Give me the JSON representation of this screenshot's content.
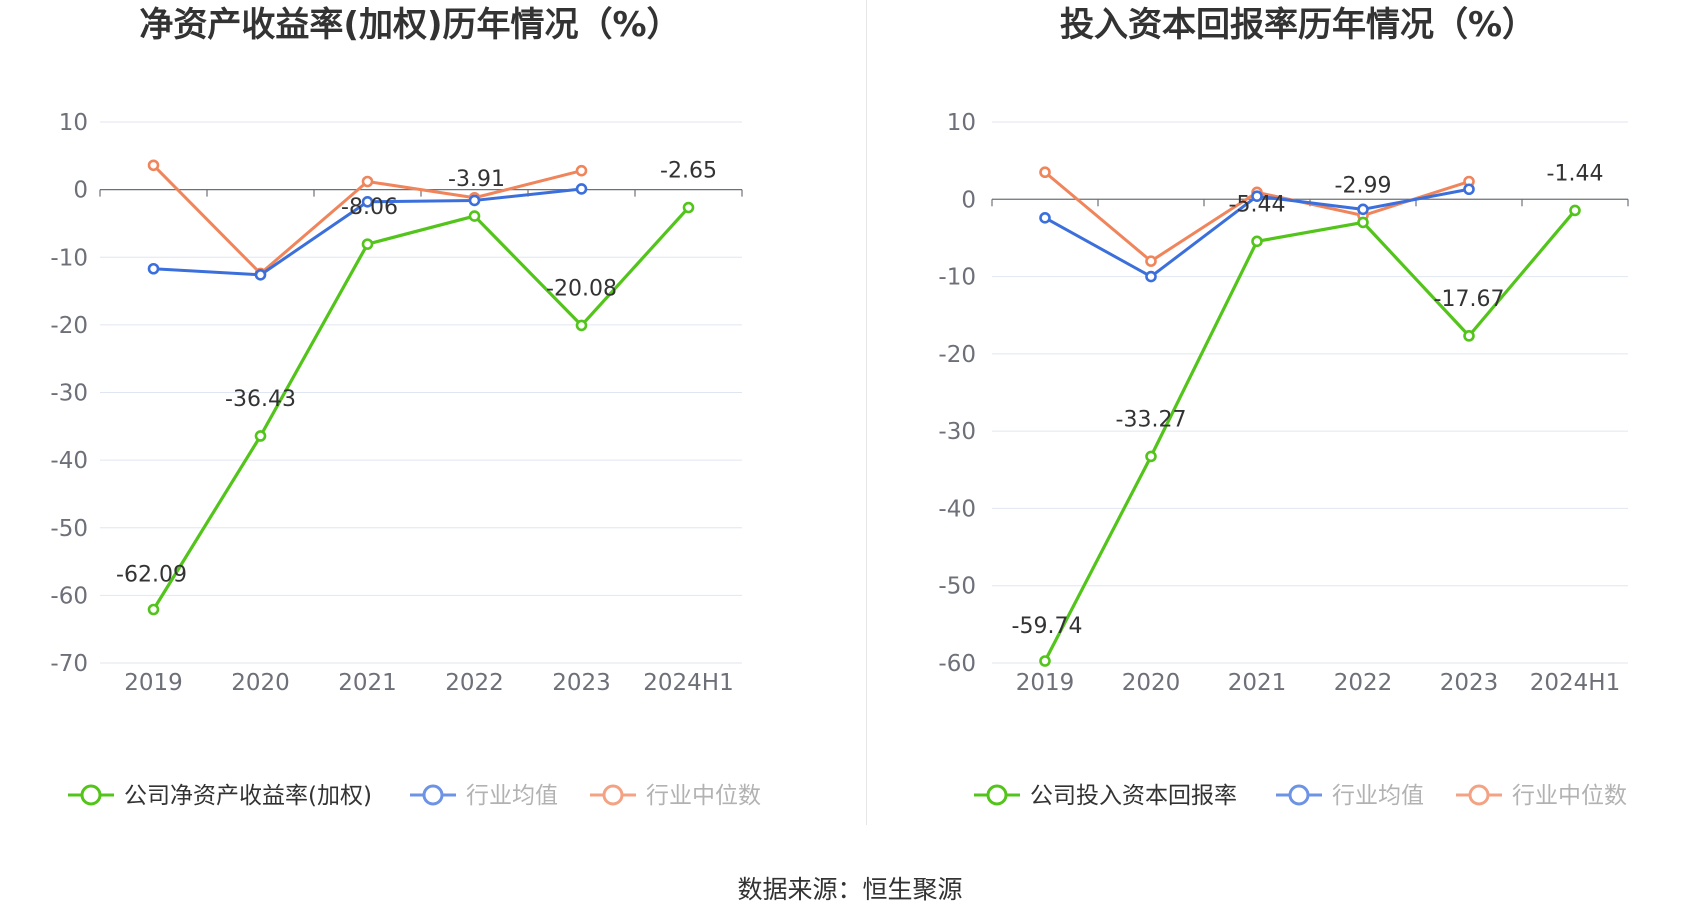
{
  "source_text": "数据来源：恒生聚源",
  "colors": {
    "company": "#52c41a",
    "avg": "#3b6fdc",
    "median": "#f0845b",
    "grid": "#e0e6f1",
    "axis": "#6e7079"
  },
  "chart_data": [
    {
      "type": "line",
      "title": "净资产收益率(加权)历年情况（%）",
      "categories": [
        "2019",
        "2020",
        "2021",
        "2022",
        "2023",
        "2024H1"
      ],
      "ylim": [
        -70,
        10
      ],
      "yticks": [
        10,
        0,
        -10,
        -20,
        -30,
        -40,
        -50,
        -60,
        -70
      ],
      "series": [
        {
          "name": "公司净资产收益率(加权)",
          "key": "company",
          "values": [
            -62.09,
            -36.43,
            -8.06,
            -3.91,
            -20.08,
            -2.65
          ],
          "labels": [
            "-62.09",
            "-36.43",
            "-8.06",
            "-3.91",
            "-20.08",
            "-2.65"
          ]
        },
        {
          "name": "行业均值",
          "key": "avg",
          "values": [
            -11.7,
            -12.6,
            -1.8,
            -1.6,
            0.1,
            null
          ]
        },
        {
          "name": "行业中位数",
          "key": "median",
          "values": [
            3.6,
            -12.4,
            1.2,
            -1.2,
            2.8,
            null
          ]
        }
      ]
    },
    {
      "type": "line",
      "title": "投入资本回报率历年情况（%）",
      "categories": [
        "2019",
        "2020",
        "2021",
        "2022",
        "2023",
        "2024H1"
      ],
      "ylim": [
        -60,
        10
      ],
      "yticks": [
        10,
        0,
        -10,
        -20,
        -30,
        -40,
        -50,
        -60
      ],
      "series": [
        {
          "name": "公司投入资本回报率",
          "key": "company",
          "values": [
            -59.74,
            -33.27,
            -5.44,
            -2.99,
            -17.67,
            -1.44
          ],
          "labels": [
            "-59.74",
            "-33.27",
            "-5.44",
            "-2.99",
            "-17.67",
            "-1.44"
          ]
        },
        {
          "name": "行业均值",
          "key": "avg",
          "values": [
            -2.4,
            -10.0,
            0.4,
            -1.3,
            1.3,
            null
          ]
        },
        {
          "name": "行业中位数",
          "key": "median",
          "values": [
            3.5,
            -8.0,
            0.9,
            -2.1,
            2.3,
            null
          ]
        }
      ]
    }
  ]
}
